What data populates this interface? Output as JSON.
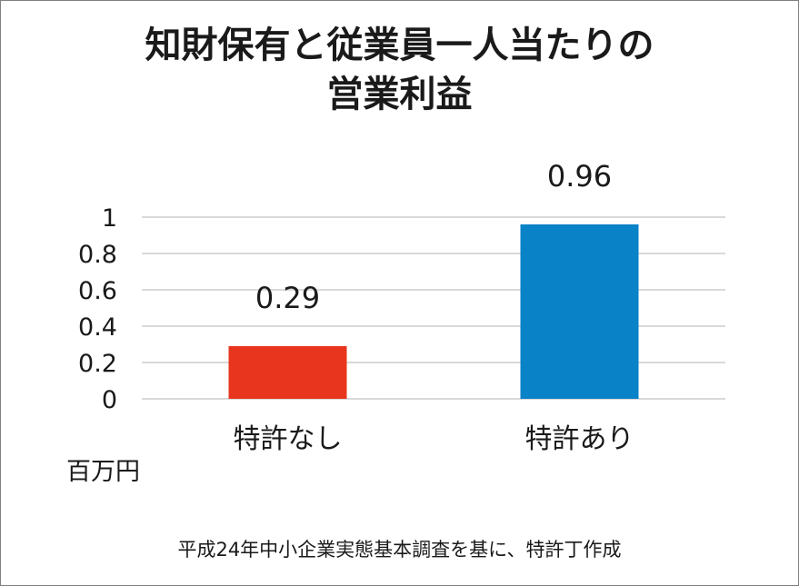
{
  "chart_data": {
    "type": "bar",
    "title_lines": [
      "知財保有と従業員一人当たりの",
      "営業利益"
    ],
    "categories": [
      "特許なし",
      "特許あり"
    ],
    "values": [
      0.29,
      0.96
    ],
    "data_labels": [
      "0.29",
      "0.96"
    ],
    "bar_colors": [
      "#e8351e",
      "#0a82c8"
    ],
    "yticks": [
      "0",
      "0.2",
      "0.4",
      "0.6",
      "0.8",
      "1"
    ],
    "ylim": [
      0,
      1
    ],
    "grid": true,
    "unit_label": "百万円",
    "legend": "none"
  },
  "footer": {
    "source": "平成24年中小企業実態基本調査を基に、特許丁作成"
  },
  "colors": {
    "gridline": "#d9d9d9",
    "text": "#1a1a1a"
  }
}
